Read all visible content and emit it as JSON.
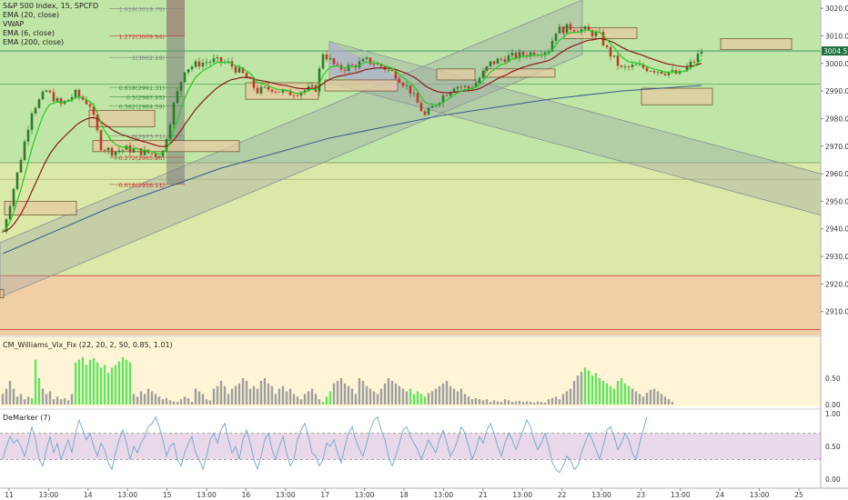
{
  "chart_data": {
    "type": "candlestick",
    "title": "S&P 500 Index, 15, SPCFD",
    "legend": [
      "EMA (20, close)",
      "VWAP",
      "EMA (6, close)",
      "EMA (200, close)"
    ],
    "price_axis": {
      "ticks": [
        3020,
        3010,
        3000,
        2990,
        2980,
        2970,
        2960,
        2950,
        2940,
        2930,
        2920,
        2910
      ],
      "range": [
        2902,
        3023
      ],
      "last_price": "3004.52"
    },
    "x_axis": {
      "ticks": [
        "11",
        "13:00",
        "14",
        "13:00",
        "15",
        "13:00",
        "16",
        "13:00",
        "17",
        "13:00",
        "18",
        "13:00",
        "21",
        "13:00",
        "22",
        "13:00",
        "23",
        "13:00",
        "24",
        "13:00",
        "25"
      ]
    },
    "fib_levels": [
      {
        "label": "1.618(3019.79)",
        "value": 3019.79
      },
      {
        "label": "1.272(3009.94)",
        "value": 3009.94
      },
      {
        "label": "1(3002.19)",
        "value": 3002.19
      },
      {
        "label": "0.618(2991.31)",
        "value": 2991.31
      },
      {
        "label": "0.5(2987.95)",
        "value": 2987.95
      },
      {
        "label": "0.382(2984.59)",
        "value": 2984.59
      },
      {
        "label": "0(2973.71)",
        "value": 2973.71
      },
      {
        "label": "-0.272(2965.96)",
        "value": 2965.96
      },
      {
        "label": "-0.618(2956.11)",
        "value": 2956.11
      }
    ],
    "price_path": [
      [
        0,
        2939
      ],
      [
        4,
        2960
      ],
      [
        8,
        2983
      ],
      [
        12,
        2990
      ],
      [
        16,
        2985
      ],
      [
        20,
        2989
      ],
      [
        24,
        2985
      ],
      [
        27,
        2970
      ],
      [
        30,
        2968
      ],
      [
        34,
        2969
      ],
      [
        38,
        2968
      ],
      [
        42,
        2967
      ],
      [
        44,
        2968
      ],
      [
        47,
        2985
      ],
      [
        50,
        2998
      ],
      [
        54,
        3000
      ],
      [
        58,
        3001
      ],
      [
        62,
        3000
      ],
      [
        66,
        2996
      ],
      [
        70,
        2990
      ],
      [
        74,
        2991
      ],
      [
        78,
        2989
      ],
      [
        82,
        2990
      ],
      [
        86,
        2991
      ],
      [
        88,
        3004
      ],
      [
        92,
        2998
      ],
      [
        96,
        2999
      ],
      [
        100,
        3001
      ],
      [
        104,
        2999
      ],
      [
        108,
        2996
      ],
      [
        112,
        2990
      ],
      [
        116,
        2981
      ],
      [
        120,
        2987
      ],
      [
        124,
        2992
      ],
      [
        128,
        2991
      ],
      [
        130,
        2993
      ],
      [
        134,
        3000
      ],
      [
        138,
        3002
      ],
      [
        142,
        3003
      ],
      [
        146,
        3004
      ],
      [
        150,
        3005
      ],
      [
        152,
        3012
      ],
      [
        156,
        3013
      ],
      [
        160,
        3012
      ],
      [
        164,
        3010
      ],
      [
        166,
        3005
      ],
      [
        170,
        2998
      ],
      [
        174,
        2999
      ],
      [
        178,
        2998
      ],
      [
        182,
        2997
      ],
      [
        186,
        2996
      ],
      [
        190,
        3001
      ],
      [
        192,
        3004.52
      ]
    ],
    "ema200_path": [
      [
        0,
        2931
      ],
      [
        30,
        2948
      ],
      [
        60,
        2962
      ],
      [
        90,
        2973
      ],
      [
        120,
        2981
      ],
      [
        150,
        2987
      ],
      [
        170,
        2990
      ],
      [
        192,
        2992
      ]
    ],
    "vix_fix": {
      "name": "CM_Williams_Vix_Fix (22, 20, 2, 50, 0.85, 1.01)",
      "ticks": [
        "0.50",
        "0.00"
      ],
      "values": [
        0.2,
        0.3,
        0.45,
        0.3,
        0.15,
        0.2,
        0.1,
        0.15,
        0.12,
        0.85,
        0.5,
        0.3,
        0.2,
        0.25,
        0.1,
        0.15,
        0.1,
        0.12,
        0.08,
        0.2,
        0.8,
        0.85,
        0.9,
        0.75,
        0.85,
        0.88,
        0.8,
        0.7,
        0.75,
        0.6,
        0.7,
        0.75,
        0.82,
        0.9,
        0.85,
        0.8,
        0.2,
        0.15,
        0.25,
        0.2,
        0.3,
        0.25,
        0.2,
        0.15,
        0.1,
        0.12,
        0.08,
        0.06,
        0.05,
        0.1,
        0.15,
        0.12,
        0.05,
        0.3,
        0.25,
        0.2,
        0.1,
        0.08,
        0.3,
        0.35,
        0.45,
        0.35,
        0.2,
        0.3,
        0.35,
        0.4,
        0.5,
        0.45,
        0.3,
        0.35,
        0.3,
        0.45,
        0.5,
        0.4,
        0.35,
        0.2,
        0.3,
        0.35,
        0.25,
        0.3,
        0.2,
        0.15,
        0.1,
        0.2,
        0.25,
        0.3,
        0.2,
        0.1,
        0.05,
        0.15,
        0.25,
        0.4,
        0.45,
        0.5,
        0.4,
        0.35,
        0.3,
        0.2,
        0.5,
        0.45,
        0.35,
        0.3,
        0.25,
        0.2,
        0.3,
        0.4,
        0.5,
        0.45,
        0.4,
        0.35,
        0.3,
        0.25,
        0.3,
        0.2,
        0.25,
        0.2,
        0.15,
        0.22,
        0.25,
        0.3,
        0.35,
        0.4,
        0.45,
        0.35,
        0.3,
        0.25,
        0.3,
        0.2,
        0.15,
        0.1,
        0.12,
        0.1,
        0.08,
        0.1,
        0.05,
        0.08,
        0.06,
        0.05,
        0.1,
        0.08,
        0.05,
        0.06,
        0.07,
        0.05,
        0.06,
        0.05,
        0.04,
        0.06,
        0.05,
        0.04,
        0.1,
        0.12,
        0.15,
        0.1,
        0.2,
        0.25,
        0.3,
        0.45,
        0.55,
        0.62,
        0.7,
        0.65,
        0.55,
        0.6,
        0.5,
        0.45,
        0.4,
        0.35,
        0.3,
        0.45,
        0.5,
        0.4,
        0.35,
        0.3,
        0.25,
        0.2,
        0.15,
        0.22,
        0.28,
        0.3,
        0.25,
        0.2,
        0.15,
        0.1,
        0.05
      ],
      "green_ranges": [
        [
          8,
          10
        ],
        [
          20,
          35
        ],
        [
          88,
          90
        ],
        [
          112,
          116
        ],
        [
          160,
          172
        ]
      ]
    },
    "demarker": {
      "name": "DeMarker (7)",
      "ticks": [
        "1.00",
        "0.50",
        "0.00"
      ],
      "levels": [
        0.7,
        0.3
      ],
      "values": [
        0.3,
        0.5,
        0.65,
        0.55,
        0.6,
        0.5,
        0.35,
        0.55,
        0.8,
        0.6,
        0.3,
        0.2,
        0.45,
        0.65,
        0.4,
        0.55,
        0.3,
        0.45,
        0.6,
        0.4,
        0.7,
        0.9,
        0.75,
        0.6,
        0.7,
        0.5,
        0.35,
        0.55,
        0.45,
        0.25,
        0.15,
        0.4,
        0.6,
        0.75,
        0.55,
        0.3,
        0.5,
        0.4,
        0.55,
        0.65,
        0.8,
        0.85,
        0.95,
        0.8,
        0.6,
        0.35,
        0.5,
        0.55,
        0.3,
        0.2,
        0.4,
        0.55,
        0.65,
        0.4,
        0.3,
        0.15,
        0.35,
        0.6,
        0.7,
        0.55,
        0.75,
        0.85,
        0.6,
        0.4,
        0.5,
        0.3,
        0.6,
        0.75,
        0.55,
        0.3,
        0.15,
        0.35,
        0.6,
        0.7,
        0.45,
        0.3,
        0.5,
        0.65,
        0.4,
        0.2,
        0.3,
        0.6,
        0.75,
        0.85,
        0.65,
        0.4,
        0.35,
        0.2,
        0.3,
        0.55,
        0.5,
        0.6,
        0.4,
        0.25,
        0.5,
        0.7,
        0.8,
        0.6,
        0.45,
        0.35,
        0.55,
        0.75,
        0.9,
        0.95,
        0.75,
        0.6,
        0.35,
        0.2,
        0.35,
        0.55,
        0.75,
        0.8,
        0.65,
        0.55,
        0.45,
        0.3,
        0.45,
        0.6,
        0.5,
        0.4,
        0.6,
        0.75,
        0.55,
        0.35,
        0.45,
        0.6,
        0.8,
        0.7,
        0.5,
        0.3,
        0.45,
        0.65,
        0.55,
        0.75,
        0.85,
        0.7,
        0.5,
        0.35,
        0.55,
        0.7,
        0.6,
        0.45,
        0.6,
        0.75,
        0.9,
        0.8,
        0.6,
        0.45,
        0.55,
        0.7,
        0.5,
        0.25,
        0.15,
        0.1,
        0.2,
        0.35,
        0.3,
        0.15,
        0.2,
        0.4,
        0.55,
        0.7,
        0.6,
        0.45,
        0.3,
        0.5,
        0.75,
        0.8,
        0.65,
        0.45,
        0.55,
        0.7,
        0.6,
        0.4,
        0.3,
        0.55,
        0.75,
        0.95
      ]
    }
  }
}
